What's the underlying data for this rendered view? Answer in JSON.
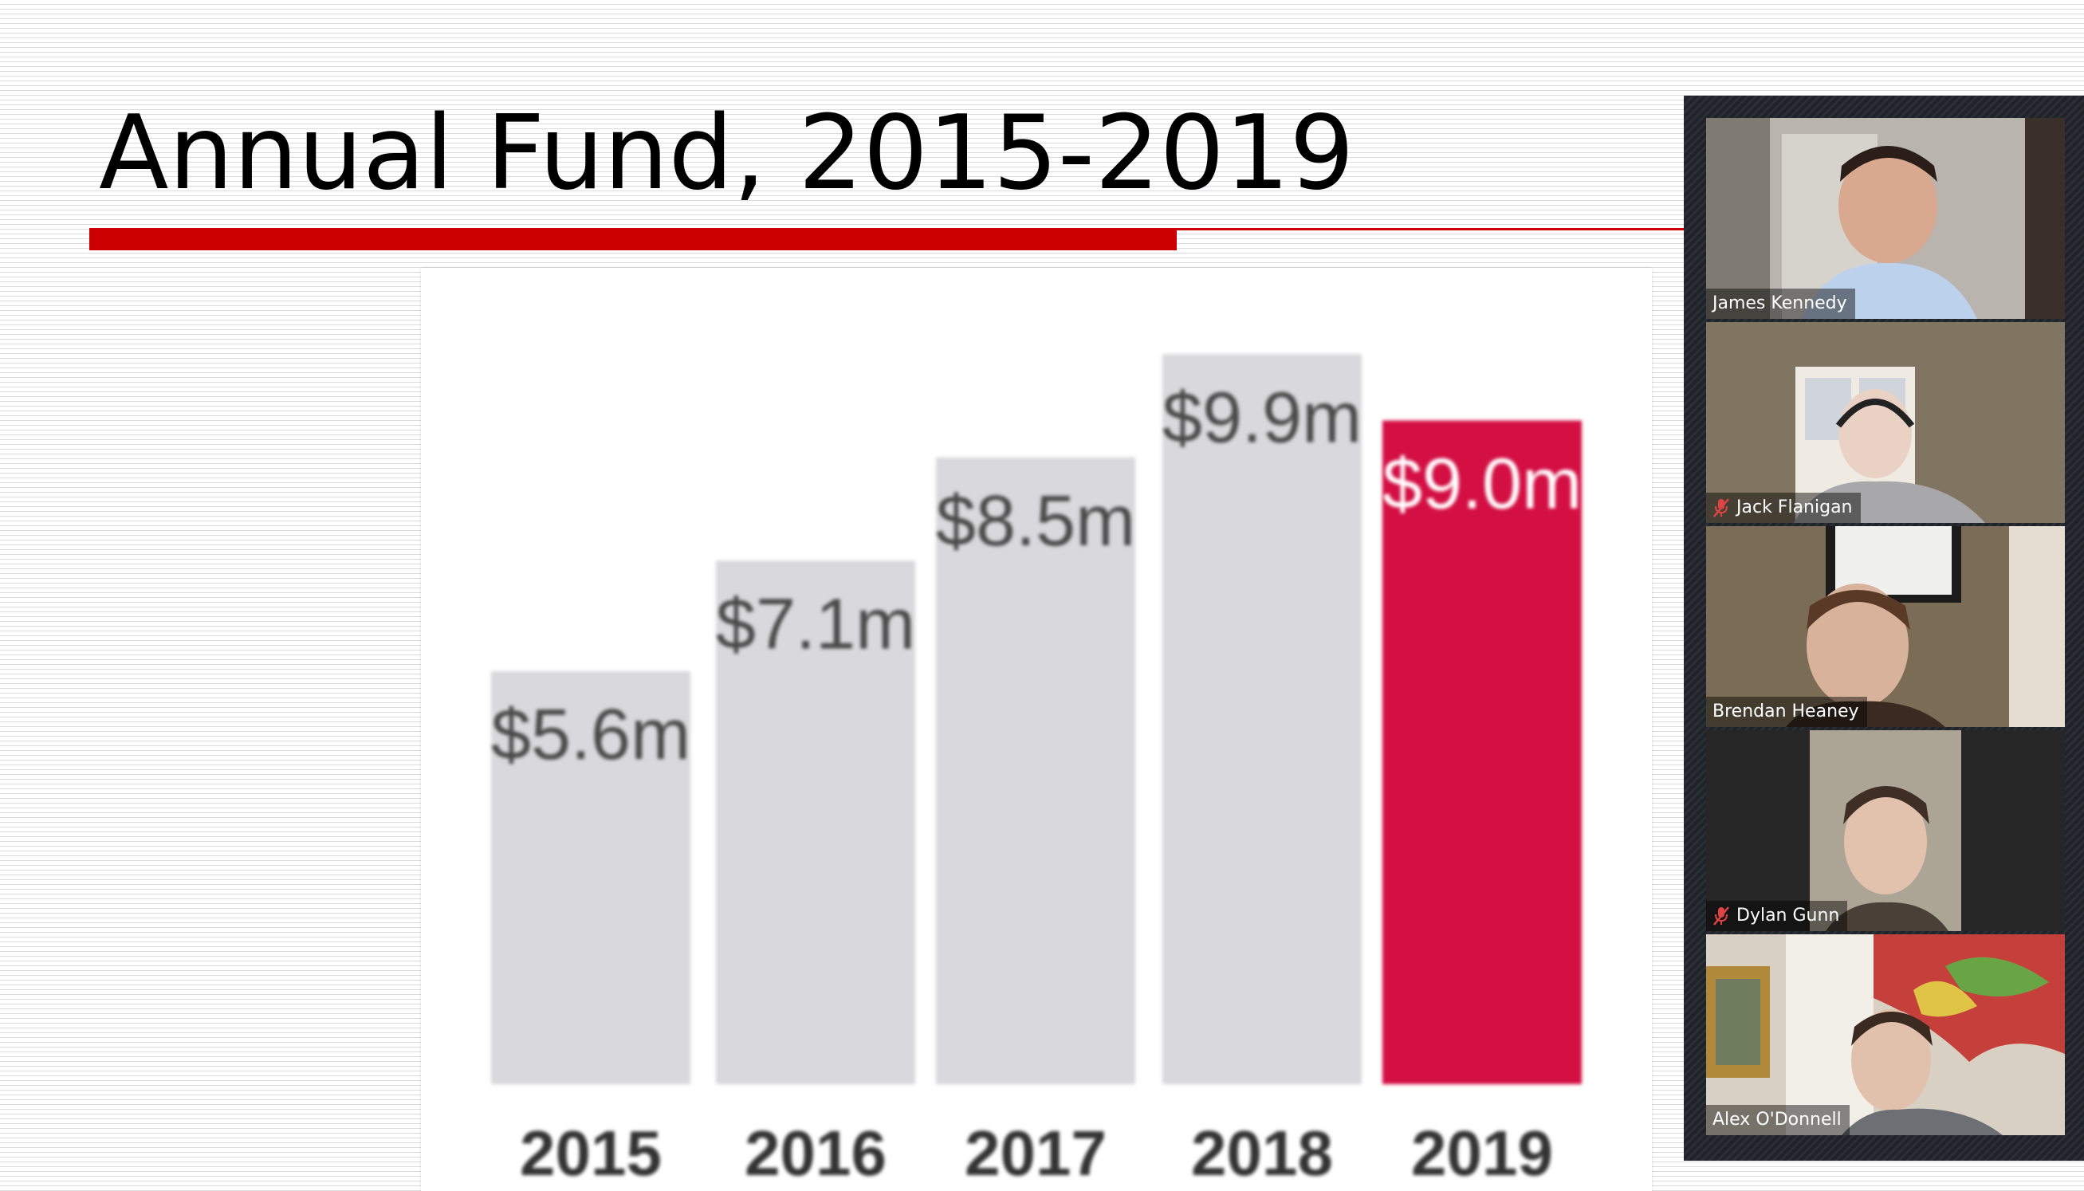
{
  "slide": {
    "title": "Annual Fund, 2015-2019",
    "colors": {
      "accent_red": "#cc0000",
      "highlight_bar": "#d40f44",
      "bar_gray": "#d9d8da"
    }
  },
  "chart_data": {
    "type": "bar",
    "title": "",
    "xlabel": "",
    "ylabel": "",
    "categories": [
      "2015",
      "2016",
      "2017",
      "2018",
      "2019"
    ],
    "values": [
      5.6,
      7.1,
      8.5,
      9.9,
      9.0
    ],
    "value_labels": [
      "$5.6m",
      "$7.1m",
      "$8.5m",
      "$9.9m",
      "$9.0m"
    ],
    "highlight_index": 4,
    "grid": false,
    "legend": "none"
  },
  "participants": [
    {
      "name": "James Kennedy",
      "muted": false,
      "active_speaker": false
    },
    {
      "name": "Jack Flanigan",
      "muted": true,
      "active_speaker": true
    },
    {
      "name": "Brendan Heaney",
      "muted": false,
      "active_speaker": false
    },
    {
      "name": "Dylan Gunn",
      "muted": true,
      "active_speaker": false
    },
    {
      "name": "Alex O'Donnell",
      "muted": false,
      "active_speaker": false
    }
  ]
}
